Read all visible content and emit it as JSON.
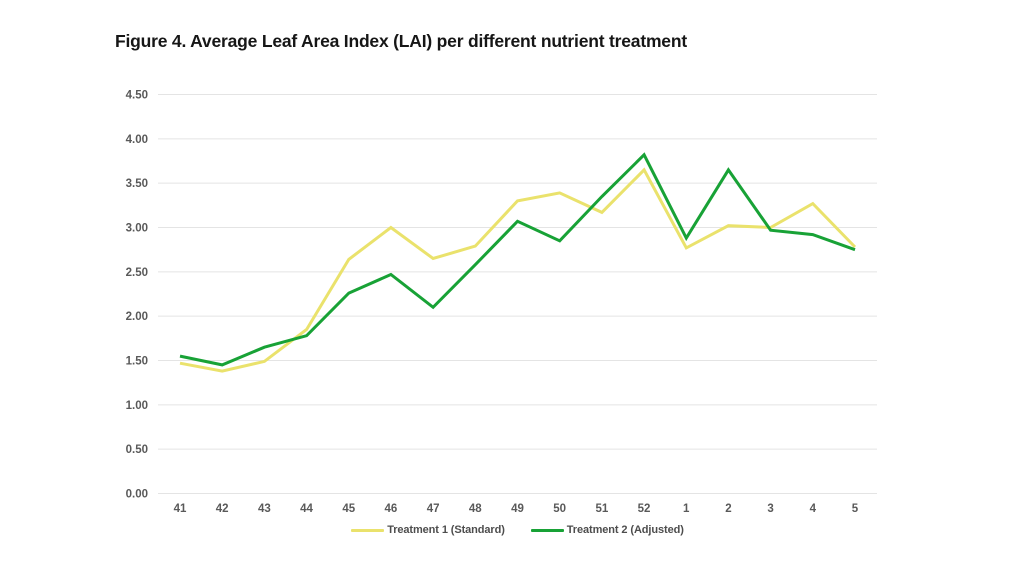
{
  "figure": {
    "title": "Figure 4. Average Leaf Area Index (LAI) per different nutrient treatment"
  },
  "colors": {
    "background": "#ffffff",
    "title_text": "#161616",
    "grid": "#e4e4e4",
    "axis_text": "#595959",
    "legend_text": "#4d4d4d",
    "treatment1": "#eae26c",
    "treatment2": "#18a236"
  },
  "chart_data": {
    "type": "line",
    "title": "Figure 4. Average Leaf Area Index (LAI) per different nutrient treatment",
    "xlabel": "",
    "ylabel": "",
    "categories": [
      "41",
      "42",
      "43",
      "44",
      "45",
      "46",
      "47",
      "48",
      "49",
      "50",
      "51",
      "52",
      "1",
      "2",
      "3",
      "4",
      "5"
    ],
    "series": [
      {
        "name": "Treatment 1 (Standard)",
        "color": "#eae26c",
        "values": [
          1.47,
          1.38,
          1.49,
          1.85,
          2.64,
          3.0,
          2.65,
          2.79,
          3.3,
          3.39,
          3.17,
          3.65,
          2.77,
          3.02,
          3.0,
          3.27,
          2.78
        ]
      },
      {
        "name": "Treatment 2 (Adjusted)",
        "color": "#18a236",
        "values": [
          1.55,
          1.45,
          1.65,
          1.78,
          2.26,
          2.47,
          2.1,
          2.58,
          3.07,
          2.85,
          3.35,
          3.82,
          2.88,
          3.65,
          2.97,
          2.92,
          2.75
        ]
      }
    ],
    "ylim": [
      0,
      4.5
    ],
    "ytick_labels": [
      "0.00",
      "0.50",
      "1.00",
      "1.50",
      "2.00",
      "2.50",
      "3.00",
      "3.50",
      "4.00",
      "4.50"
    ],
    "grid": "horizontal",
    "legend_position": "bottom"
  }
}
